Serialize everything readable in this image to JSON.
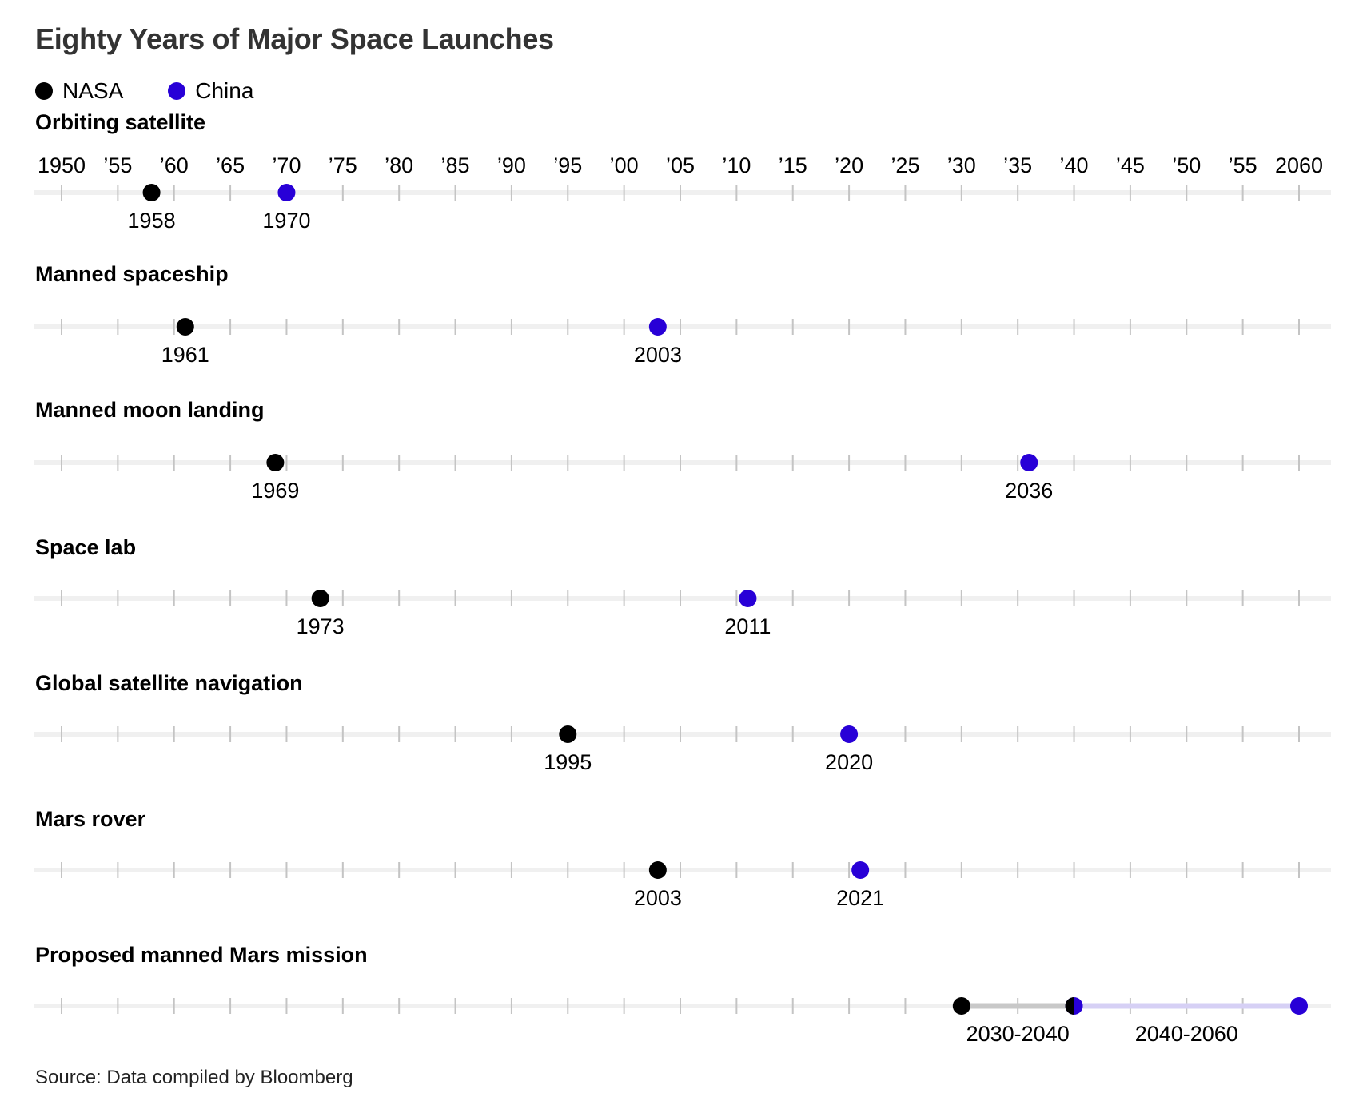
{
  "chart_data": {
    "type": "scatter",
    "title": "Eighty Years of Major Space Launches",
    "source": "Source: Data compiled by Bloomberg",
    "xlim": [
      1950,
      2060
    ],
    "tick_years": [
      1950,
      1955,
      1960,
      1965,
      1970,
      1975,
      1980,
      1985,
      1990,
      1995,
      2000,
      2005,
      2010,
      2015,
      2020,
      2025,
      2030,
      2035,
      2040,
      2045,
      2050,
      2055,
      2060
    ],
    "tick_labels": [
      "1950",
      "’55",
      "’60",
      "’65",
      "’70",
      "’75",
      "’80",
      "’85",
      "’90",
      "’95",
      "’00",
      "’05",
      "’10",
      "’15",
      "’20",
      "’25",
      "’30",
      "’35",
      "’40",
      "’45",
      "’50",
      "’55",
      "2060"
    ],
    "legend": [
      {
        "name": "NASA",
        "color": "#000000"
      },
      {
        "name": "China",
        "color": "#2800D7"
      }
    ],
    "rows": [
      {
        "title": "Orbiting satellite",
        "points": [
          {
            "series": "NASA",
            "year": 1958,
            "label": "1958"
          },
          {
            "series": "China",
            "year": 1970,
            "label": "1970"
          }
        ]
      },
      {
        "title": "Manned spaceship",
        "points": [
          {
            "series": "NASA",
            "year": 1961,
            "label": "1961"
          },
          {
            "series": "China",
            "year": 2003,
            "label": "2003"
          }
        ]
      },
      {
        "title": "Manned moon landing",
        "points": [
          {
            "series": "NASA",
            "year": 1969,
            "label": "1969"
          },
          {
            "series": "China",
            "year": 2036,
            "label": "2036"
          }
        ]
      },
      {
        "title": "Space lab",
        "points": [
          {
            "series": "NASA",
            "year": 1973,
            "label": "1973"
          },
          {
            "series": "China",
            "year": 2011,
            "label": "2011"
          }
        ]
      },
      {
        "title": "Global satellite navigation",
        "points": [
          {
            "series": "NASA",
            "year": 1995,
            "label": "1995"
          },
          {
            "series": "China",
            "year": 2020,
            "label": "2020"
          }
        ]
      },
      {
        "title": "Mars rover",
        "points": [
          {
            "series": "NASA",
            "year": 2003,
            "label": "2003"
          },
          {
            "series": "China",
            "year": 2021,
            "label": "2021"
          }
        ]
      },
      {
        "title": "Proposed manned Mars mission",
        "ranges": [
          {
            "series": "NASA",
            "start": 2030,
            "end": 2040,
            "label": "2030-2040",
            "bar_color": "#c8c8c8"
          },
          {
            "series": "China",
            "start": 2040,
            "end": 2060,
            "label": "2040-2060",
            "bar_color": "#d6d0f5"
          }
        ]
      }
    ]
  }
}
